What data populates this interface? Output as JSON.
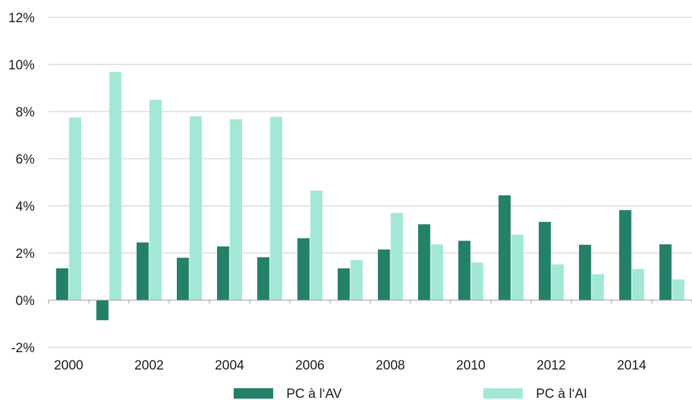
{
  "chart_data": {
    "type": "bar",
    "categories": [
      "2000",
      "2001",
      "2002",
      "2003",
      "2004",
      "2005",
      "2006",
      "2007",
      "2008",
      "2009",
      "2010",
      "2011",
      "2012",
      "2013",
      "2014",
      "2015"
    ],
    "x_tick_labels": [
      "2000",
      "2002",
      "2004",
      "2006",
      "2008",
      "2010",
      "2012",
      "2014"
    ],
    "series": [
      {
        "name": "PC à l‘AV",
        "color": "#238069",
        "values": [
          1.35,
          -0.85,
          2.45,
          1.8,
          2.28,
          1.82,
          2.63,
          1.35,
          2.15,
          3.22,
          2.52,
          4.45,
          3.32,
          2.35,
          3.82,
          2.37
        ]
      },
      {
        "name": "PC à l‘AI",
        "color": "#a3e8d6",
        "values": [
          7.75,
          9.68,
          8.5,
          7.8,
          7.68,
          7.78,
          4.65,
          1.7,
          3.7,
          2.37,
          1.6,
          2.78,
          1.52,
          1.1,
          1.32,
          0.88
        ]
      }
    ],
    "y_tick_labels": [
      "12%",
      "10%",
      "8%",
      "6%",
      "4%",
      "2%",
      "0%",
      "-2%"
    ],
    "ylim": [
      -2,
      12
    ],
    "grid": true,
    "legend": "bottom"
  }
}
